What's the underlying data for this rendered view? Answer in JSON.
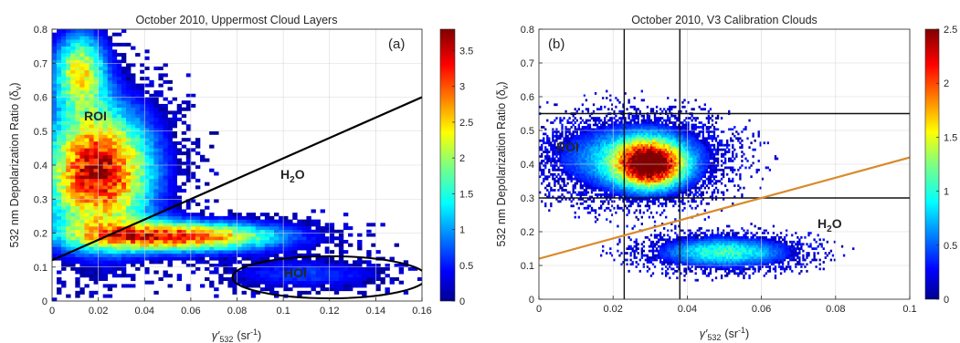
{
  "chart_data": [
    {
      "panel": "(a)",
      "type": "heatmap",
      "title": "October 2010, Uppermost Cloud Layers",
      "xlabel_main": "γ′",
      "xlabel_sub": "532",
      "xlabel_unit": "(sr",
      "xlabel_exp": "-1",
      "xlabel_close": ")",
      "ylabel_main": "532 nm Depolarization Ratio (δ",
      "ylabel_sub": "v",
      "ylabel_close": ")",
      "xlim": [
        0,
        0.16
      ],
      "ylim": [
        0,
        0.8
      ],
      "xticks": [
        0,
        0.02,
        0.04,
        0.06,
        0.08,
        0.1,
        0.12,
        0.14,
        0.16
      ],
      "xtick_labels": [
        "0",
        "0.02",
        "0.04",
        "0.06",
        "0.08",
        "0.1",
        "0.12",
        "0.14",
        "0.16"
      ],
      "yticks": [
        0,
        0.1,
        0.2,
        0.3,
        0.4,
        0.5,
        0.6,
        0.7,
        0.8
      ],
      "ytick_labels": [
        "0",
        "0.1",
        "0.2",
        "0.3",
        "0.4",
        "0.5",
        "0.6",
        "0.7",
        "0.8"
      ],
      "grid": true,
      "colorbar": {
        "range": [
          0,
          3.8
        ],
        "ticks": [
          0,
          0.5,
          1,
          1.5,
          2,
          2.5,
          3,
          3.5
        ],
        "tick_labels": [
          "0",
          "0.5",
          "1",
          "1.5",
          "2",
          "2.5",
          "3",
          "3.5"
        ],
        "colormap": "jet"
      },
      "density_regions": [
        {
          "label": "ROI",
          "cx": 0.02,
          "cy": 0.38,
          "sx": 0.016,
          "sy": 0.13,
          "peak": 3.6
        },
        {
          "label": "upper-branch",
          "cx": 0.012,
          "cy": 0.68,
          "sx": 0.008,
          "sy": 0.08,
          "peak": 2.2
        },
        {
          "label": "H2O-band",
          "cx": 0.055,
          "cy": 0.19,
          "sx": 0.03,
          "sy": 0.03,
          "peak": 3.2
        },
        {
          "label": "HOI",
          "cx": 0.11,
          "cy": 0.08,
          "sx": 0.025,
          "sy": 0.03,
          "peak": 0.7
        }
      ],
      "separator_line": {
        "x": [
          0,
          0.16
        ],
        "y": [
          0.12,
          0.6
        ],
        "color": "#000000"
      },
      "ellipse": {
        "cx": 0.12,
        "cy": 0.07,
        "rx": 0.042,
        "ry": 0.062,
        "color": "#000000"
      },
      "annotations": [
        {
          "text": "ROI",
          "x": 0.02,
          "y": 0.5,
          "style": "dark"
        },
        {
          "text_main": "H",
          "text_sub": "2",
          "text_tail": "O",
          "x": 0.083,
          "y": 0.34,
          "style": "dark"
        },
        {
          "text": "HOI",
          "x": 0.1,
          "y": 0.075,
          "style": "light"
        }
      ],
      "panel_label": "(a)"
    },
    {
      "panel": "(b)",
      "type": "heatmap",
      "title": "October 2010, V3 Calibration Clouds",
      "xlabel_main": "γ′",
      "xlabel_sub": "532",
      "xlabel_unit": "(sr",
      "xlabel_exp": "-1",
      "xlabel_close": ")",
      "ylabel_main": "532 nm Depolarization Ratio (δ",
      "ylabel_sub": "v",
      "ylabel_close": ")",
      "xlim": [
        0,
        0.1
      ],
      "ylim": [
        0,
        0.8
      ],
      "xticks": [
        0,
        0.02,
        0.04,
        0.06,
        0.08,
        0.1
      ],
      "xtick_labels": [
        "0",
        "0.02",
        "0.04",
        "0.06",
        "0.08",
        "0.1"
      ],
      "yticks": [
        0,
        0.1,
        0.2,
        0.3,
        0.4,
        0.5,
        0.6,
        0.7,
        0.8
      ],
      "ytick_labels": [
        "0",
        "0.1",
        "0.2",
        "0.3",
        "0.4",
        "0.5",
        "0.6",
        "0.7",
        "0.8"
      ],
      "grid": true,
      "colorbar": {
        "range": [
          0,
          2.5
        ],
        "ticks": [
          0,
          0.5,
          1,
          1.5,
          2,
          2.5
        ],
        "tick_labels": [
          "0",
          "0.5",
          "1",
          "1.5",
          "2",
          "2.5"
        ],
        "colormap": "jet"
      },
      "density_regions": [
        {
          "label": "ROI",
          "cx": 0.03,
          "cy": 0.4,
          "sx": 0.006,
          "sy": 0.045,
          "peak": 2.4
        },
        {
          "label": "ROI-halo",
          "cx": 0.025,
          "cy": 0.42,
          "sx": 0.014,
          "sy": 0.07,
          "peak": 0.9
        },
        {
          "label": "water-band",
          "cx": 0.05,
          "cy": 0.14,
          "sx": 0.012,
          "sy": 0.03,
          "peak": 1.1
        }
      ],
      "vertical_lines": [
        0.023,
        0.038
      ],
      "horizontal_lines": [
        0.3,
        0.55
      ],
      "separator_line": {
        "x": [
          0,
          0.1
        ],
        "y": [
          0.12,
          0.42
        ],
        "color": "#d98a2b"
      },
      "annotations": [
        {
          "text": "ROI",
          "x": 0.011,
          "y": 0.43,
          "style": "dark"
        },
        {
          "text_main": "H",
          "text_sub": "2",
          "text_tail": "O",
          "x": 0.076,
          "y": 0.18,
          "style": "orange"
        }
      ],
      "panel_label": "(b)"
    }
  ]
}
